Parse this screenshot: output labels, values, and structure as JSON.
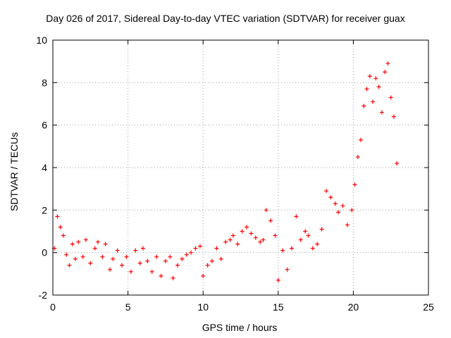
{
  "chart_data": {
    "type": "scatter",
    "title": "Day 026 of 2017, Sidereal Day-to-day VTEC variation (SDTVAR) for receiver guax",
    "xlabel": "GPS time / hours",
    "ylabel": "SDTVAR / TECUs",
    "xlim": [
      0,
      25
    ],
    "ylim": [
      -2,
      10
    ],
    "xticks": [
      "0",
      "5",
      "10",
      "15",
      "20",
      "25"
    ],
    "yticks": [
      "-2",
      "0",
      "2",
      "4",
      "6",
      "8",
      "10"
    ],
    "grid": true,
    "marker": "+",
    "color": "#ff0000",
    "series": [
      {
        "name": "SDTVAR",
        "x": [
          0.1,
          0.3,
          0.5,
          0.7,
          0.9,
          1.1,
          1.3,
          1.5,
          1.7,
          2.0,
          2.2,
          2.5,
          2.8,
          3.0,
          3.3,
          3.5,
          3.8,
          4.0,
          4.3,
          4.6,
          4.9,
          5.2,
          5.5,
          5.8,
          6.0,
          6.3,
          6.6,
          6.9,
          7.2,
          7.5,
          7.8,
          8.0,
          8.3,
          8.6,
          8.9,
          9.2,
          9.5,
          9.8,
          10.0,
          10.3,
          10.6,
          10.9,
          11.2,
          11.5,
          11.8,
          12.0,
          12.3,
          12.6,
          12.9,
          13.2,
          13.5,
          13.8,
          14.0,
          14.2,
          14.5,
          14.8,
          15.0,
          15.3,
          15.6,
          15.9,
          16.2,
          16.5,
          16.8,
          17.0,
          17.3,
          17.6,
          17.9,
          18.2,
          18.5,
          18.8,
          19.0,
          19.3,
          19.6,
          19.9,
          20.1,
          20.3,
          20.5,
          20.7,
          20.9,
          21.1,
          21.3,
          21.5,
          21.7,
          21.9,
          22.1,
          22.3,
          22.5,
          22.7,
          22.9
        ],
        "y": [
          0.2,
          1.7,
          1.2,
          0.8,
          -0.1,
          -0.6,
          0.4,
          -0.3,
          0.5,
          -0.2,
          0.6,
          -0.5,
          0.2,
          0.5,
          -0.2,
          0.4,
          -0.8,
          -0.3,
          0.1,
          -0.6,
          -0.2,
          -0.9,
          0.1,
          -0.5,
          0.2,
          -0.4,
          -0.9,
          -0.2,
          -1.1,
          -0.4,
          -0.2,
          -1.2,
          -0.6,
          -0.3,
          -0.1,
          0.0,
          0.2,
          0.3,
          -1.1,
          -0.6,
          -0.4,
          0.2,
          -0.3,
          0.5,
          0.6,
          0.8,
          0.4,
          1.0,
          1.2,
          0.9,
          0.7,
          0.5,
          0.6,
          2.0,
          1.5,
          0.8,
          -1.3,
          0.1,
          -0.8,
          0.2,
          1.7,
          0.6,
          1.0,
          0.8,
          0.2,
          0.4,
          1.1,
          2.9,
          2.6,
          2.3,
          1.9,
          2.2,
          1.3,
          2.0,
          3.2,
          4.5,
          5.3,
          6.9,
          7.7,
          8.3,
          7.1,
          8.2,
          7.8,
          6.6,
          8.5,
          8.9,
          7.3,
          6.4,
          4.2
        ]
      }
    ]
  }
}
